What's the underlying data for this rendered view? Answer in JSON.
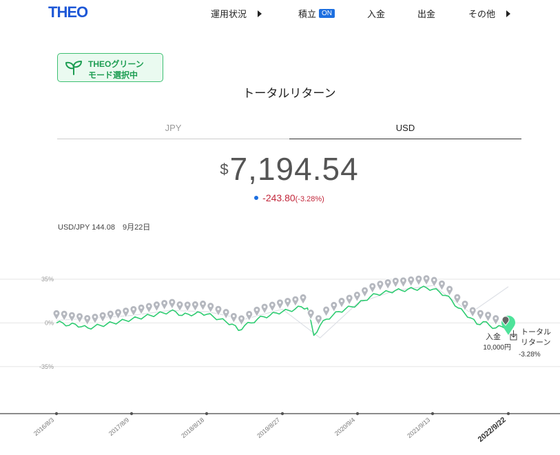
{
  "header": {
    "logo": "THEO",
    "nav": [
      {
        "label": "運用状況",
        "has_arrow": true
      },
      {
        "label": "積立",
        "badge": "ON"
      },
      {
        "label": "入金"
      },
      {
        "label": "出金"
      },
      {
        "label": "その他",
        "has_arrow": true
      }
    ]
  },
  "green_mode": {
    "line1": "THEOグリーン",
    "line2": "モード選択中",
    "icon": "leaf-icon"
  },
  "page_title": "トータルリターン",
  "tabs": [
    {
      "label": "JPY",
      "active": false
    },
    {
      "label": "USD",
      "active": true
    }
  ],
  "total": {
    "currency": "$",
    "value": "7,194.54"
  },
  "change": {
    "value": "-243.80",
    "percent": "(-3.28%)"
  },
  "fx_rate": "USD/JPY 144.08　9月22日",
  "colors": {
    "accent": "#1d6fe0",
    "green": "#2ecc71",
    "negative": "#c2263a",
    "marker": "#b5b8bf"
  },
  "chart_data": {
    "type": "line",
    "y_ticks": [
      "35%",
      "0%",
      "-35%"
    ],
    "ylim": [
      -55,
      40
    ],
    "x_ticks": [
      "2016/8/3",
      "2017/8/9",
      "2018/8/18",
      "2019/8/27",
      "2020/9/4",
      "2021/9/13",
      "2022/9/22"
    ],
    "series": [
      {
        "name": "",
        "x": [
          0,
          1,
          2,
          3,
          4,
          5,
          6,
          7,
          8,
          9,
          10,
          11,
          12,
          13,
          14,
          15,
          16,
          17,
          18,
          19,
          20,
          21,
          22,
          23,
          24,
          25,
          26,
          27,
          28,
          29,
          30,
          31,
          32,
          33,
          34,
          35,
          36,
          37,
          38,
          39,
          40,
          41,
          42,
          43,
          44,
          45,
          46,
          47,
          48,
          49,
          50,
          51,
          52,
          53,
          54,
          55,
          56,
          57,
          58,
          59,
          60,
          61,
          62,
          63,
          64,
          65,
          66,
          67,
          68,
          69,
          70,
          71,
          72
        ],
        "values": [
          0,
          0,
          -2,
          -1,
          -3,
          -4,
          -3,
          -2,
          -1,
          0,
          1,
          2,
          3,
          4,
          5,
          6,
          7,
          8,
          9,
          9,
          6,
          7,
          7,
          8,
          7,
          5,
          3,
          1,
          -1,
          -6,
          -2,
          0,
          3,
          5,
          6,
          8,
          9,
          10,
          11,
          13,
          12,
          -10,
          -2,
          3,
          6,
          9,
          11,
          13,
          15,
          18,
          21,
          23,
          24,
          25,
          26,
          26,
          27,
          27,
          28,
          28,
          27,
          25,
          22,
          18,
          12,
          8,
          4,
          -1,
          1,
          -2,
          -4,
          -3,
          -3
        ]
      },
      {
        "name": "",
        "x": [
          0,
          6,
          12,
          18,
          24,
          30,
          36,
          42,
          48,
          54,
          60,
          66,
          72
        ],
        "values": [
          2,
          4,
          6,
          10,
          9,
          3,
          11,
          -12,
          16,
          26,
          30,
          8,
          29
        ]
      }
    ],
    "deposit_markers_count": 58,
    "annotations": [
      {
        "label_1": "入金",
        "label_2": "10,000円"
      },
      {
        "label_1": "トータル",
        "label_2": "リターン",
        "label_3": "-3.28%"
      }
    ],
    "current_x_label": "2022/9/22"
  }
}
